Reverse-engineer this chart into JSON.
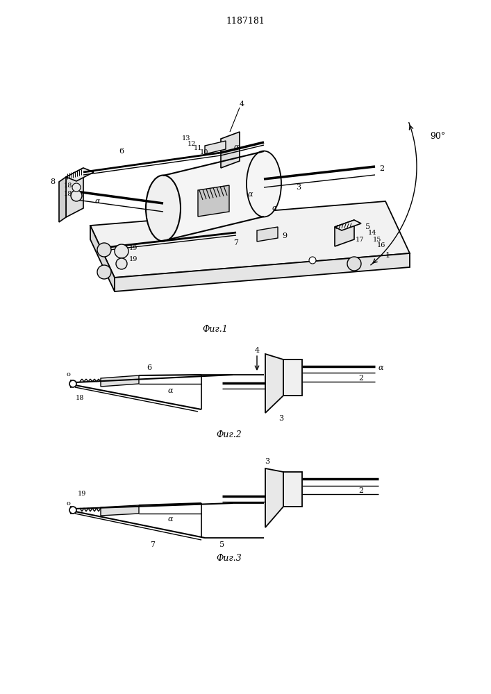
{
  "title": "1187181",
  "fig1_caption": "Фиг.1",
  "fig2_caption": "Фиг.2",
  "fig3_caption": "Фиг.3",
  "bg_color": "#ffffff",
  "fig_width": 7.07,
  "fig_height": 10.0,
  "dpi": 100
}
